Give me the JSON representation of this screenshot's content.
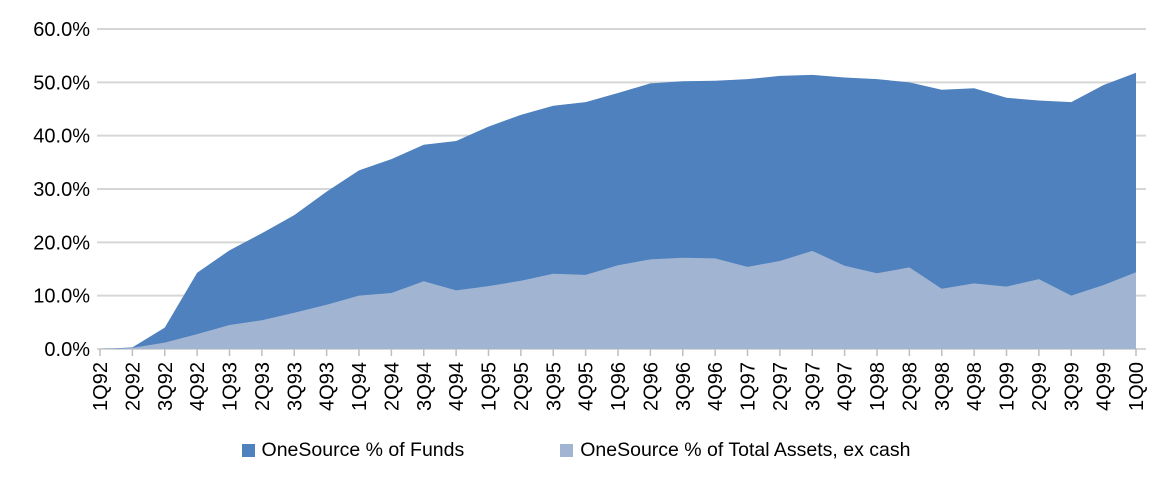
{
  "chart_data": {
    "type": "area",
    "overlapping": true,
    "title": "",
    "xlabel": "",
    "ylabel": "",
    "ylim": [
      0,
      60
    ],
    "y_tick_labels": [
      "0.0%",
      "10.0%",
      "20.0%",
      "30.0%",
      "40.0%",
      "50.0%",
      "60.0%"
    ],
    "grid": true,
    "legend_position": "bottom",
    "gridline_color": "#d6d6d6",
    "tick_color": "#bfbfbf",
    "axis_text_color": "#000000",
    "categories": [
      "1Q92",
      "2Q92",
      "3Q92",
      "4Q92",
      "1Q93",
      "2Q93",
      "3Q93",
      "4Q93",
      "1Q94",
      "2Q94",
      "3Q94",
      "4Q94",
      "1Q95",
      "2Q95",
      "3Q95",
      "4Q95",
      "1Q96",
      "2Q96",
      "3Q96",
      "4Q96",
      "1Q97",
      "2Q97",
      "3Q97",
      "4Q97",
      "1Q98",
      "2Q98",
      "3Q98",
      "4Q98",
      "1Q99",
      "2Q99",
      "3Q99",
      "4Q99",
      "1Q00"
    ],
    "series": [
      {
        "name": "OneSource % of Funds",
        "color": "#4e81bd",
        "values": [
          0.0,
          0.3,
          4.0,
          14.3,
          18.5,
          21.7,
          25.1,
          29.5,
          33.5,
          35.6,
          38.3,
          39.0,
          41.7,
          43.9,
          45.6,
          46.3,
          48.0,
          49.8,
          50.2,
          50.3,
          50.6,
          51.2,
          51.4,
          50.9,
          50.6,
          50.0,
          48.6,
          48.9,
          47.1,
          46.6,
          46.3,
          49.5,
          51.8
        ]
      },
      {
        "name": "OneSource % of Total Assets, ex cash",
        "color": "#a1b5d3",
        "values": [
          0.0,
          0.2,
          1.2,
          2.8,
          4.5,
          5.4,
          6.8,
          8.3,
          10.0,
          10.5,
          12.7,
          11.0,
          11.8,
          12.8,
          14.1,
          13.9,
          15.7,
          16.8,
          17.1,
          17.0,
          15.4,
          16.5,
          18.4,
          15.6,
          14.2,
          15.3,
          11.3,
          12.3,
          11.7,
          13.1,
          10.0,
          12.0,
          14.4
        ]
      }
    ]
  }
}
